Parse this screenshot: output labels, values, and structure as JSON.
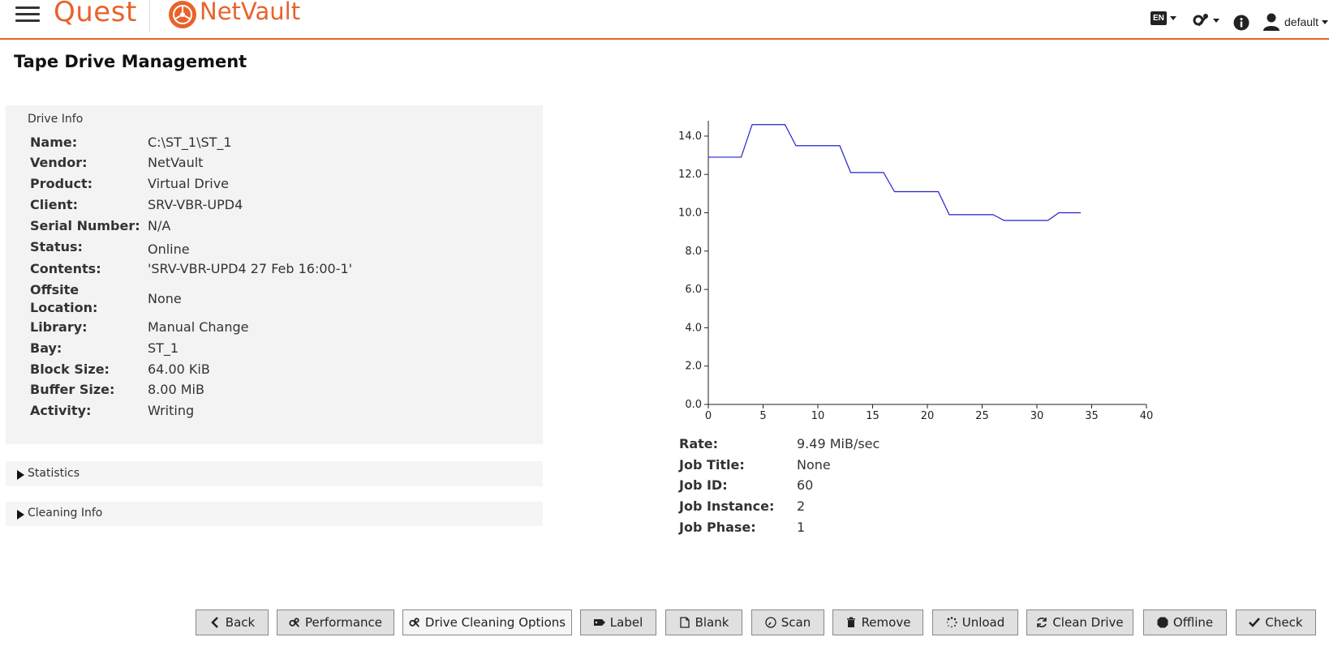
{
  "header": {
    "brand": "Quest",
    "product": "NetVault",
    "lang_badge": "EN",
    "user": "default"
  },
  "page": {
    "title": "Tape Drive Management"
  },
  "drive_info": {
    "title": "Drive Info",
    "rows": [
      {
        "label": "Name:",
        "value": "C:\\ST_1\\ST_1"
      },
      {
        "label": "Vendor:",
        "value": "NetVault"
      },
      {
        "label": "Product:",
        "value": "Virtual Drive"
      },
      {
        "label": "Client:",
        "value": "SRV-VBR-UPD4"
      },
      {
        "label": "Serial Number:",
        "value": "N/A"
      },
      {
        "label": "Status:",
        "value": "Online"
      },
      {
        "label": "Contents:",
        "value": "'SRV-VBR-UPD4 27 Feb 16:00-1'"
      },
      {
        "label": "Offsite Location:",
        "value": "None"
      },
      {
        "label": "Library:",
        "value": "Manual Change"
      },
      {
        "label": "Bay:",
        "value": "ST_1"
      },
      {
        "label": "Block Size:",
        "value": "64.00 KiB"
      },
      {
        "label": "Buffer Size:",
        "value": "8.00 MiB"
      },
      {
        "label": "Activity:",
        "value": "Writing"
      }
    ]
  },
  "sections": [
    {
      "label": "Statistics"
    },
    {
      "label": "Cleaning Info"
    }
  ],
  "stats": [
    {
      "label": "Rate:",
      "value": "9.49 MiB/sec"
    },
    {
      "label": "Job Title:",
      "value": "None"
    },
    {
      "label": "Job ID:",
      "value": "60"
    },
    {
      "label": "Job Instance:",
      "value": "2"
    },
    {
      "label": "Job Phase:",
      "value": "1"
    }
  ],
  "chart_data": {
    "type": "line",
    "xlim": [
      0,
      40
    ],
    "ylim": [
      0,
      14.8
    ],
    "x_ticks": [
      "0",
      "5",
      "10",
      "15",
      "20",
      "25",
      "30",
      "35",
      "40"
    ],
    "y_ticks": [
      "0.0",
      "2.0",
      "4.0",
      "6.0",
      "8.0",
      "10.0",
      "12.0",
      "14.0"
    ],
    "color": "#2222cc",
    "series": [
      {
        "x": [
          0,
          3,
          4,
          7,
          8,
          12,
          13,
          16,
          17,
          21,
          22,
          26,
          27,
          31,
          32,
          34
        ],
        "values": [
          12.9,
          12.9,
          14.6,
          14.6,
          13.5,
          13.5,
          12.1,
          12.1,
          11.1,
          11.1,
          9.9,
          9.9,
          9.6,
          9.6,
          10.0,
          10.0
        ]
      }
    ]
  },
  "toolbar": [
    {
      "label": "Back",
      "icon": "chevron-left-icon"
    },
    {
      "label": "Performance",
      "icon": "gears-icon"
    },
    {
      "label": "Drive Cleaning Options",
      "icon": "gears-icon"
    },
    {
      "label": "Label",
      "icon": "tag-icon"
    },
    {
      "label": "Blank",
      "icon": "file-icon"
    },
    {
      "label": "Scan",
      "icon": "gauge-icon"
    },
    {
      "label": "Remove",
      "icon": "trash-icon"
    },
    {
      "label": "Unload",
      "icon": "spinner-icon"
    },
    {
      "label": "Clean Drive",
      "icon": "refresh-icon"
    },
    {
      "label": "Offline",
      "icon": "stop-icon"
    },
    {
      "label": "Check",
      "icon": "check-icon"
    }
  ]
}
